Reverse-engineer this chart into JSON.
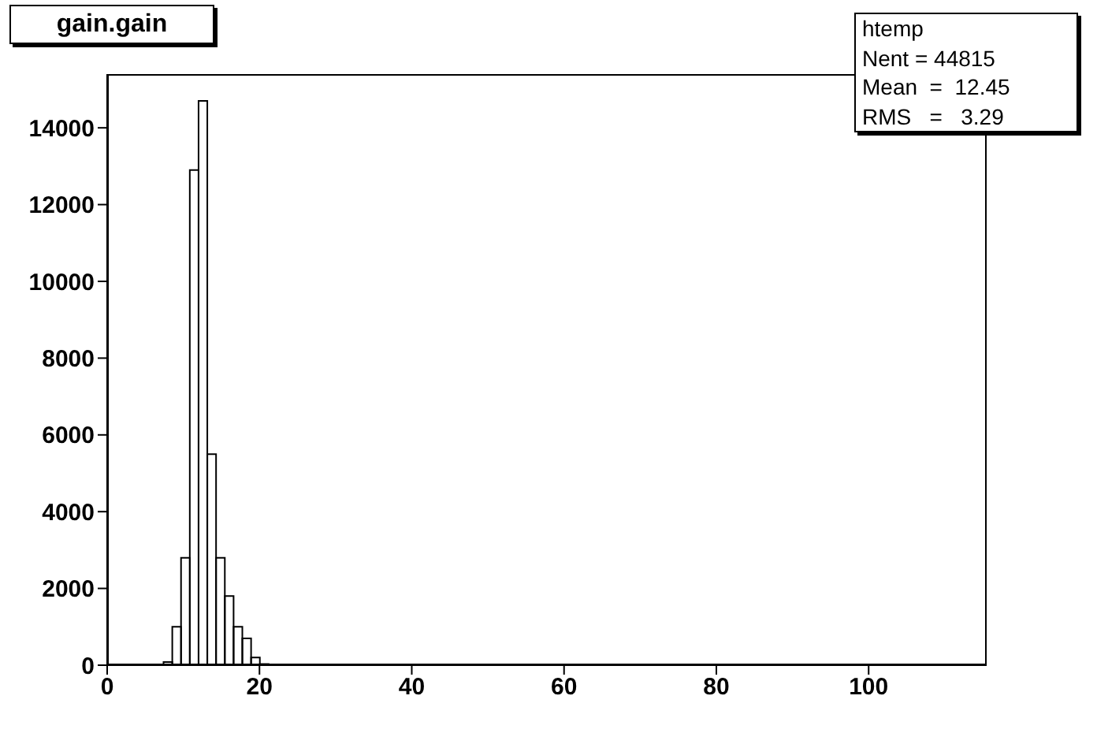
{
  "chart_data": {
    "type": "histogram",
    "title": "gain.gain",
    "annotations": [
      "htemp",
      "Nent = 44815",
      "Mean  =  12.45",
      "RMS   =   3.29"
    ],
    "bins": [
      5.1,
      6.25,
      7.4,
      8.55,
      9.7,
      10.85,
      12.0,
      13.15,
      14.3,
      15.45,
      16.6,
      17.75,
      18.9,
      20.05,
      21.2,
      22.35,
      23.5,
      24.65,
      25.8,
      26.95,
      28.1,
      29.25,
      30.4,
      31.55,
      32.7,
      33.85
    ],
    "values": [
      0,
      20,
      80,
      1000,
      2800,
      12900,
      14700,
      5500,
      2800,
      1800,
      1000,
      700,
      200,
      30,
      0,
      0,
      0,
      0,
      0,
      0,
      0,
      0,
      0,
      0,
      20
    ],
    "color": "#000000",
    "xlim": [
      0,
      115.5
    ],
    "xticks": [
      0,
      20,
      40,
      60,
      80,
      100
    ],
    "ylim": [
      0,
      15400
    ],
    "yticks": [
      0,
      2000,
      4000,
      6000,
      8000,
      10000,
      12000,
      14000
    ]
  }
}
